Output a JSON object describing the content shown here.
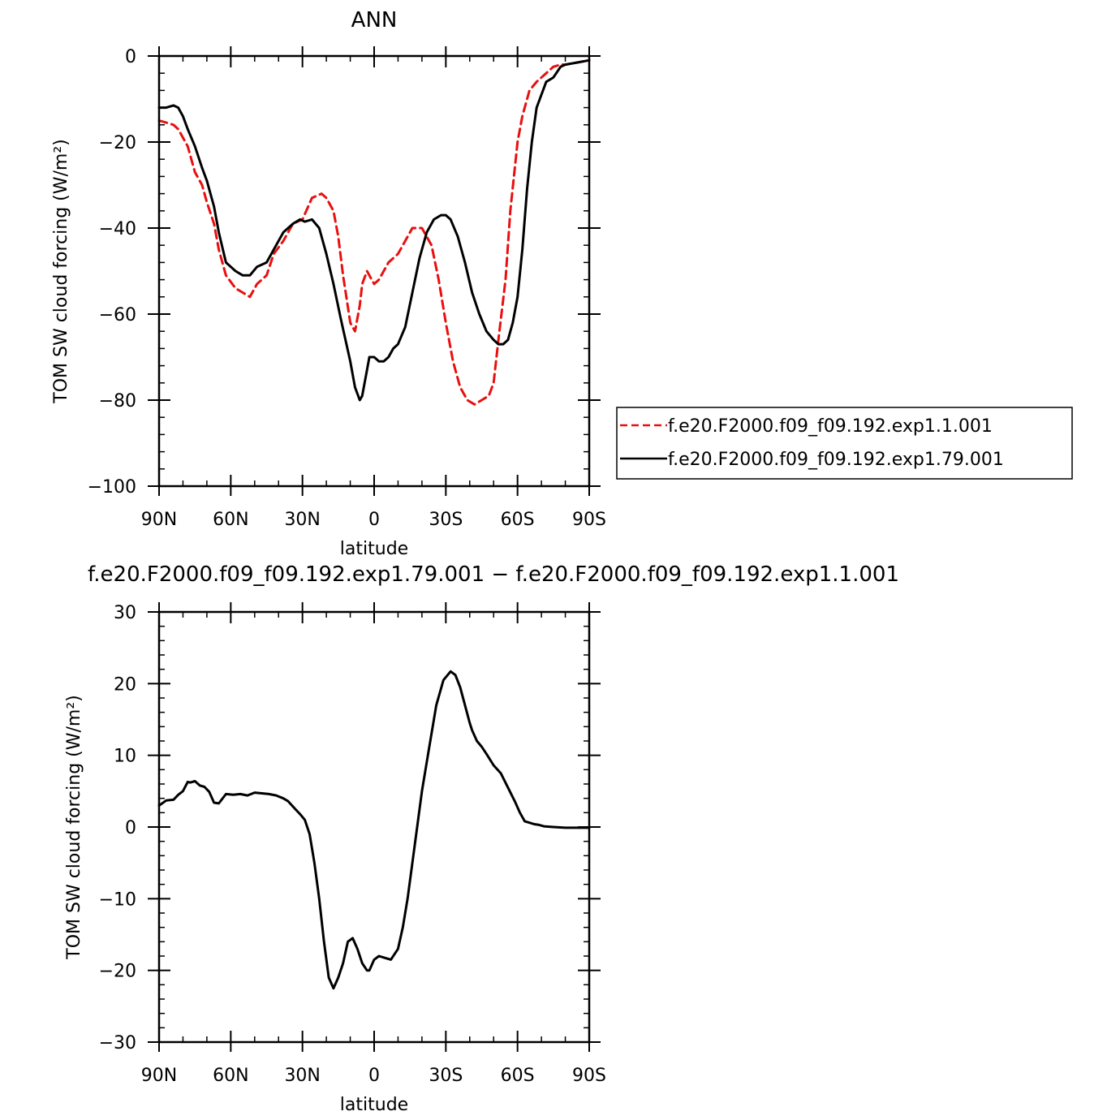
{
  "chart_data": [
    {
      "type": "line",
      "title": "ANN",
      "xlabel": "latitude",
      "ylabel": "TOM SW cloud forcing (W/m²)",
      "xlim": [
        90,
        -90
      ],
      "ylim": [
        -100,
        0
      ],
      "x_ticks": [
        90,
        60,
        30,
        0,
        -30,
        -60,
        -90
      ],
      "x_tick_labels": [
        "90N",
        "60N",
        "30N",
        "0",
        "30S",
        "60S",
        "90S"
      ],
      "y_ticks": [
        0,
        -20,
        -40,
        -60,
        -80,
        -100
      ],
      "y_tick_labels": [
        "0",
        "−20",
        "−40",
        "−60",
        "−80",
        "−100"
      ],
      "grid": false,
      "legend_position": "right, outside plot",
      "series": [
        {
          "name": "f.e20.F2000.f09_f09.192.exp1.1.001",
          "color": "#e8100f",
          "dash": "dashed",
          "x": [
            90,
            84,
            82,
            78,
            75,
            72,
            70,
            67,
            65,
            62,
            58,
            55,
            52,
            49,
            45,
            42,
            38,
            34,
            30,
            26,
            22,
            20,
            17,
            15,
            13,
            10,
            8,
            6,
            5,
            3,
            2,
            0,
            -2,
            -4,
            -6,
            -8,
            -10,
            -13,
            -16,
            -20,
            -24,
            -27,
            -30,
            -33,
            -36,
            -39,
            -42,
            -45,
            -48,
            -50,
            -52,
            -55,
            -57,
            -60,
            -62,
            -65,
            -68,
            -72,
            -75,
            -78,
            -80,
            -85,
            -90
          ],
          "y": [
            -15,
            -16,
            -17,
            -21,
            -27,
            -30,
            -34,
            -39,
            -45,
            -51,
            -54,
            -55,
            -56,
            -53,
            -51,
            -46,
            -43,
            -39,
            -38,
            -33,
            -32,
            -33,
            -36,
            -42,
            -51,
            -62,
            -64,
            -58,
            -53,
            -50,
            -51,
            -53,
            -52,
            -50,
            -48,
            -47,
            -46,
            -43,
            -40,
            -40,
            -44,
            -52,
            -62,
            -71,
            -77,
            -80,
            -81,
            -80,
            -79,
            -76,
            -66,
            -52,
            -36,
            -20,
            -14,
            -8,
            -6,
            -4,
            -2.5,
            -2,
            -2,
            -1.5,
            -1
          ]
        },
        {
          "name": "f.e20.F2000.f09_f09.192.exp1.79.001",
          "color": "#000000",
          "dash": "solid",
          "x": [
            90,
            87,
            84,
            82,
            80,
            78,
            75,
            72,
            70,
            67,
            65,
            62,
            58,
            55,
            52,
            49,
            45,
            42,
            38,
            34,
            31,
            29,
            26,
            23,
            20,
            17,
            14,
            12,
            10,
            8,
            6,
            5,
            3,
            2,
            0,
            -2,
            -4,
            -6,
            -8,
            -10,
            -13,
            -16,
            -19,
            -22,
            -25,
            -28,
            -30,
            -32,
            -35,
            -38,
            -41,
            -44,
            -47,
            -50,
            -52,
            -54,
            -56,
            -58,
            -60,
            -62,
            -64,
            -66,
            -68,
            -72,
            -75,
            -78,
            -80,
            -85,
            -90
          ],
          "y": [
            -12,
            -12,
            -11.5,
            -12,
            -14,
            -17,
            -21,
            -26,
            -29,
            -35,
            -41,
            -48,
            -50,
            -51,
            -51,
            -49,
            -48,
            -45,
            -41,
            -39,
            -38,
            -38.5,
            -38,
            -40,
            -46,
            -53,
            -61,
            -66,
            -71,
            -77,
            -80,
            -79,
            -73,
            -70,
            -70,
            -71,
            -71,
            -70,
            -68,
            -67,
            -63,
            -55,
            -47,
            -41,
            -38,
            -37,
            -37,
            -38,
            -42,
            -48,
            -55,
            -60,
            -64,
            -66,
            -67,
            -67,
            -66,
            -62,
            -56,
            -45,
            -31,
            -20,
            -12,
            -6,
            -5,
            -2.5,
            -2,
            -1.5,
            -1
          ]
        }
      ]
    },
    {
      "type": "line",
      "title": "f.e20.F2000.f09_f09.192.exp1.79.001 − f.e20.F2000.f09_f09.192.exp1.1.001",
      "xlabel": "latitude",
      "ylabel": "TOM SW cloud forcing (W/m²)",
      "xlim": [
        90,
        -90
      ],
      "ylim": [
        -30,
        30
      ],
      "x_ticks": [
        90,
        60,
        30,
        0,
        -30,
        -60,
        -90
      ],
      "x_tick_labels": [
        "90N",
        "60N",
        "30N",
        "0",
        "30S",
        "60S",
        "90S"
      ],
      "y_ticks": [
        30,
        20,
        10,
        0,
        -10,
        -20,
        -30
      ],
      "y_tick_labels": [
        "30",
        "20",
        "10",
        "0",
        "−10",
        "−20",
        "−30"
      ],
      "grid": false,
      "series": [
        {
          "color": "#000000",
          "dash": "solid",
          "x": [
            90,
            87,
            84,
            82,
            80,
            78,
            77,
            75,
            73,
            71,
            69,
            67,
            65,
            62,
            59,
            56,
            53,
            50,
            47,
            44,
            41,
            38,
            36,
            33,
            31,
            29,
            27,
            25,
            23,
            21,
            19,
            17,
            15,
            13,
            11,
            9,
            7,
            5,
            3,
            2,
            0,
            -2,
            -4,
            -7,
            -10,
            -12,
            -14,
            -16,
            -18,
            -20,
            -23,
            -26,
            -29,
            -32,
            -34,
            -36,
            -38,
            -40,
            -41,
            -43,
            -45,
            -47,
            -50,
            -53,
            -56,
            -59,
            -61,
            -63,
            -65,
            -67,
            -69,
            -71,
            -75,
            -80,
            -85,
            -90
          ],
          "y": [
            3,
            3.7,
            3.8,
            4.5,
            5,
            6.3,
            6.2,
            6.4,
            5.8,
            5.6,
            4.9,
            3.4,
            3.3,
            4.6,
            4.5,
            4.6,
            4.4,
            4.8,
            4.7,
            4.6,
            4.4,
            4.0,
            3.6,
            2.5,
            1.8,
            1.0,
            -1.0,
            -5,
            -10,
            -16,
            -21,
            -22.5,
            -21,
            -19,
            -16,
            -15.5,
            -17,
            -19,
            -20,
            -20,
            -18.5,
            -18,
            -18.2,
            -18.5,
            -17,
            -14,
            -10,
            -5,
            0,
            5,
            11,
            17,
            20.5,
            21.7,
            21.2,
            19.5,
            17,
            14.5,
            13.5,
            12,
            11.2,
            10.2,
            8.6,
            7.5,
            5.5,
            3.5,
            2.0,
            0.8,
            0.6,
            0.4,
            0.3,
            0.1,
            0,
            -0.1,
            -0.1,
            -0.1
          ]
        }
      ]
    }
  ]
}
